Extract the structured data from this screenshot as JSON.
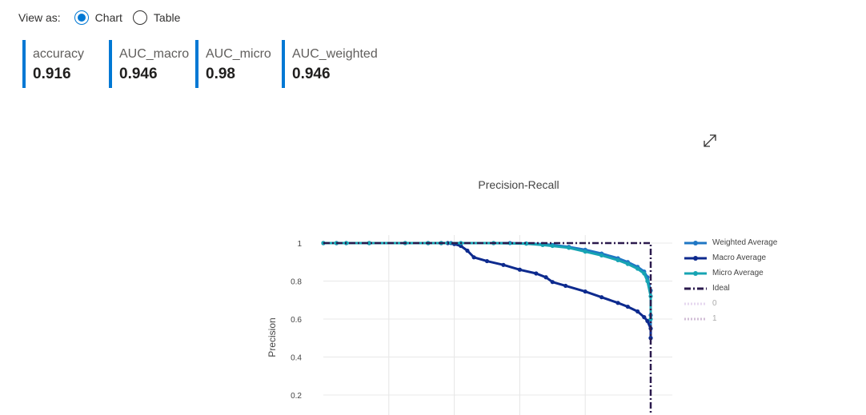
{
  "view_as": {
    "label": "View as:",
    "options": [
      {
        "label": "Chart",
        "selected": true
      },
      {
        "label": "Table",
        "selected": false
      }
    ]
  },
  "metrics": [
    {
      "name": "accuracy",
      "value": "0.916"
    },
    {
      "name": "AUC_macro",
      "value": "0.946"
    },
    {
      "name": "AUC_micro",
      "value": "0.98"
    },
    {
      "name": "AUC_weighted",
      "value": "0.946"
    }
  ],
  "icons": {
    "expand": "expand-diagonal-icon"
  },
  "colors": {
    "accent": "#0078d4"
  },
  "chart_data": {
    "type": "line",
    "title": "Precision-Recall",
    "xlabel": "",
    "ylabel": "Precision",
    "xlim": [
      0,
      1
    ],
    "ylim": [
      0.2,
      1.0
    ],
    "yticks": [
      0.2,
      0.4,
      0.6,
      0.8,
      1
    ],
    "ytick_labels": [
      "0.2",
      "0.4",
      "0.6",
      "0.8",
      "1"
    ],
    "grid": true,
    "legend_position": "right",
    "series": [
      {
        "name": "Weighted Average",
        "color": "#1f77c4",
        "style": "solid-markers",
        "x": [
          0,
          0.04,
          0.07,
          0.14,
          0.25,
          0.32,
          0.36,
          0.39,
          0.42,
          0.52,
          0.57,
          0.62,
          0.67,
          0.7,
          0.75,
          0.8,
          0.85,
          0.9,
          0.93,
          0.96,
          0.98,
          0.99,
          1.0,
          1.0,
          1.0
        ],
        "y": [
          1,
          1,
          1,
          1,
          1,
          1,
          1,
          1,
          1,
          1,
          1,
          0.998,
          0.995,
          0.99,
          0.98,
          0.965,
          0.945,
          0.92,
          0.9,
          0.875,
          0.85,
          0.82,
          0.75,
          0.62,
          0.5
        ]
      },
      {
        "name": "Macro Average",
        "color": "#0d2a8e",
        "style": "solid-markers",
        "x": [
          0,
          0.04,
          0.07,
          0.14,
          0.25,
          0.32,
          0.36,
          0.38,
          0.4,
          0.42,
          0.44,
          0.46,
          0.5,
          0.55,
          0.6,
          0.65,
          0.68,
          0.7,
          0.74,
          0.8,
          0.85,
          0.9,
          0.93,
          0.96,
          0.98,
          0.99,
          1.0,
          1.0
        ],
        "y": [
          1,
          1,
          1,
          1,
          1,
          1,
          1,
          1,
          0.995,
          0.985,
          0.96,
          0.925,
          0.905,
          0.885,
          0.86,
          0.84,
          0.82,
          0.795,
          0.775,
          0.745,
          0.715,
          0.685,
          0.665,
          0.64,
          0.61,
          0.59,
          0.55,
          0.5
        ]
      },
      {
        "name": "Micro Average",
        "color": "#17a4b3",
        "style": "solid-markers",
        "x": [
          0,
          0.04,
          0.07,
          0.14,
          0.25,
          0.32,
          0.36,
          0.42,
          0.52,
          0.62,
          0.67,
          0.7,
          0.75,
          0.8,
          0.85,
          0.9,
          0.93,
          0.96,
          0.98,
          0.99,
          1.0,
          1.0
        ],
        "y": [
          1,
          1,
          1,
          1,
          1,
          1,
          1,
          1,
          1,
          0.997,
          0.99,
          0.985,
          0.975,
          0.955,
          0.935,
          0.91,
          0.89,
          0.865,
          0.84,
          0.8,
          0.72,
          0.6
        ]
      },
      {
        "name": "Ideal",
        "color": "#2b1a4d",
        "style": "dashdot",
        "x": [
          0,
          1,
          1
        ],
        "y": [
          1,
          1,
          0
        ]
      },
      {
        "name": "0",
        "color": "#c9a8dc",
        "style": "dotted",
        "x": [],
        "y": []
      },
      {
        "name": "1",
        "color": "#9a6fa6",
        "style": "dotted",
        "x": [],
        "y": []
      }
    ]
  }
}
